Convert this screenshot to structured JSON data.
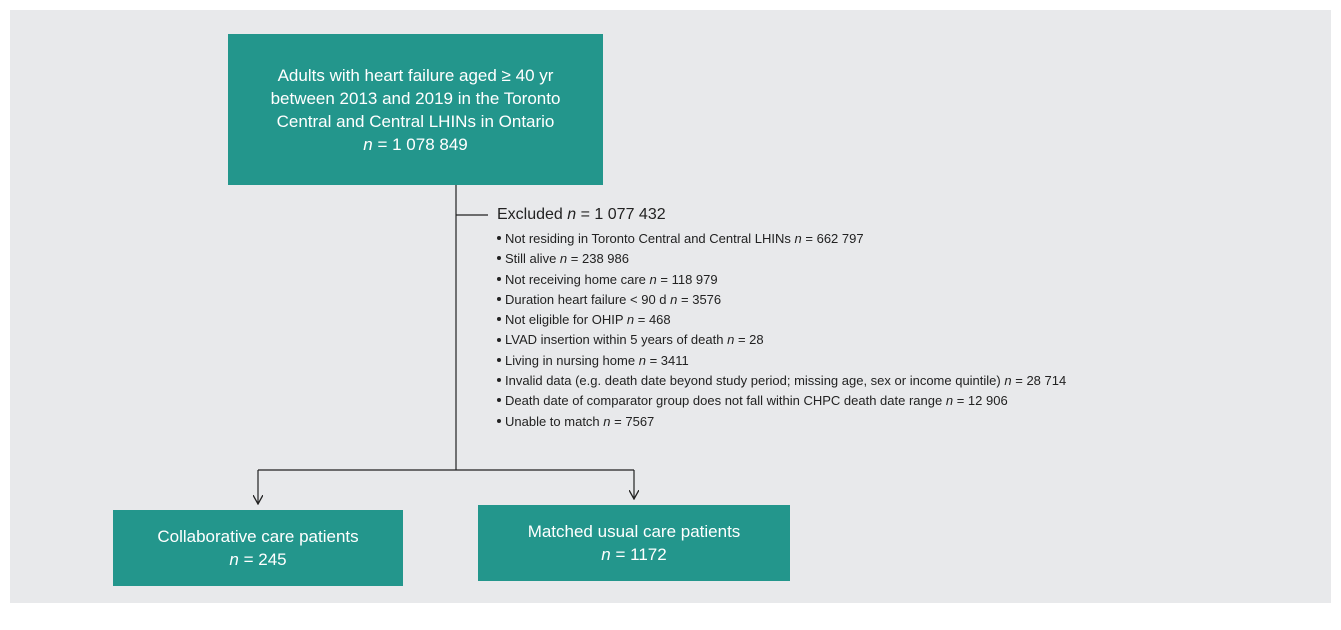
{
  "count_symbol": "n",
  "top_box": {
    "lines": [
      "Adults with heart failure aged ≥ 40 yr",
      "between 2013 and 2019 in the Toronto",
      "Central and Central LHINs in Ontario"
    ],
    "count": "= 1 078 849"
  },
  "excluded": {
    "label": "Excluded",
    "count": "= 1 077 432",
    "items": [
      {
        "text": "Not residing in Toronto Central and Central LHINs",
        "count": "= 662 797"
      },
      {
        "text": "Still alive",
        "count": "= 238 986"
      },
      {
        "text": "Not receiving home care",
        "count": "= 118 979"
      },
      {
        "text": "Duration heart failure < 90 d",
        "count": "= 3576"
      },
      {
        "text": "Not eligible for OHIP",
        "count": "= 468"
      },
      {
        "text": "LVAD insertion within 5 years of death",
        "count": "= 28"
      },
      {
        "text": "Living in nursing home",
        "count": "= 3411"
      },
      {
        "text": "Invalid data (e.g. death date beyond study period; missing age, sex or income quintile)",
        "count": "= 28 714"
      },
      {
        "text": "Death date of comparator group does not fall within CHPC death date range",
        "count": "= 12 906"
      },
      {
        "text": "Unable to match",
        "count": "= 7567"
      }
    ]
  },
  "left_box": {
    "label": "Collaborative care patients",
    "count": "= 245"
  },
  "right_box": {
    "label": "Matched usual care patients",
    "count": "= 1172"
  }
}
